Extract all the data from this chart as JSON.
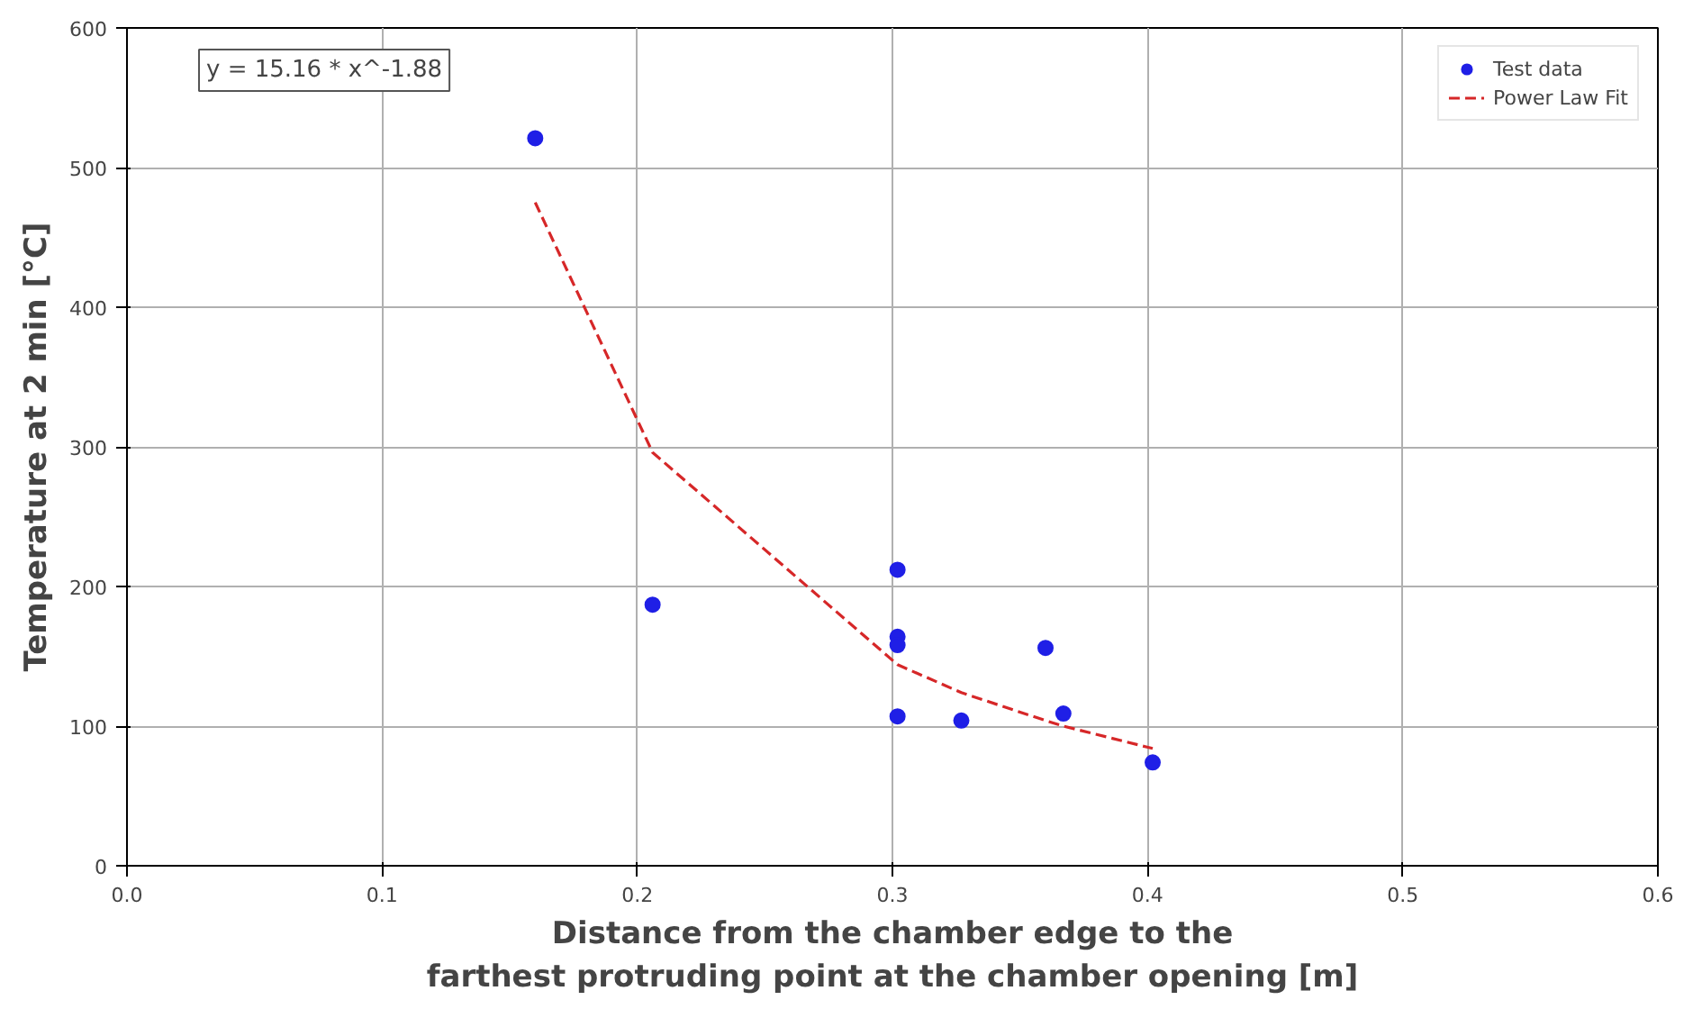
{
  "chart_data": {
    "type": "scatter",
    "xlabel": "Distance from the chamber edge to the\nfarthest protruding point at the chamber opening [m]",
    "ylabel": "Temperature at 2 min [°C]",
    "annotations": [
      "y = 15.16 * x^-1.88"
    ],
    "xlim": [
      0,
      0.6
    ],
    "xticks": [
      {
        "value": 0,
        "label": "0.0"
      },
      0.1,
      0.2,
      0.3,
      0.4,
      0.5,
      0.6
    ],
    "ylim": [
      0,
      600
    ],
    "yticks": [
      0,
      100,
      200,
      300,
      400,
      500,
      600
    ],
    "grid": true,
    "legend": "top right",
    "series": [
      {
        "name": "Test data",
        "color": "#1f1fe6",
        "marker": "circle",
        "x": [
          0.16,
          0.206,
          0.302,
          0.302,
          0.302,
          0.302,
          0.327,
          0.36,
          0.367,
          0.402
        ],
        "values": [
          521,
          187,
          212,
          164,
          158,
          107,
          104,
          156,
          109,
          74
        ]
      },
      {
        "type": "line",
        "name": "Power Law Fit",
        "color": "#d62728",
        "line_style": "dashed",
        "x": [
          0.16,
          0.206,
          0.302,
          0.327,
          0.36,
          0.367,
          0.402
        ],
        "values": [
          475,
          296,
          144,
          124,
          104,
          100,
          84
        ]
      }
    ]
  }
}
